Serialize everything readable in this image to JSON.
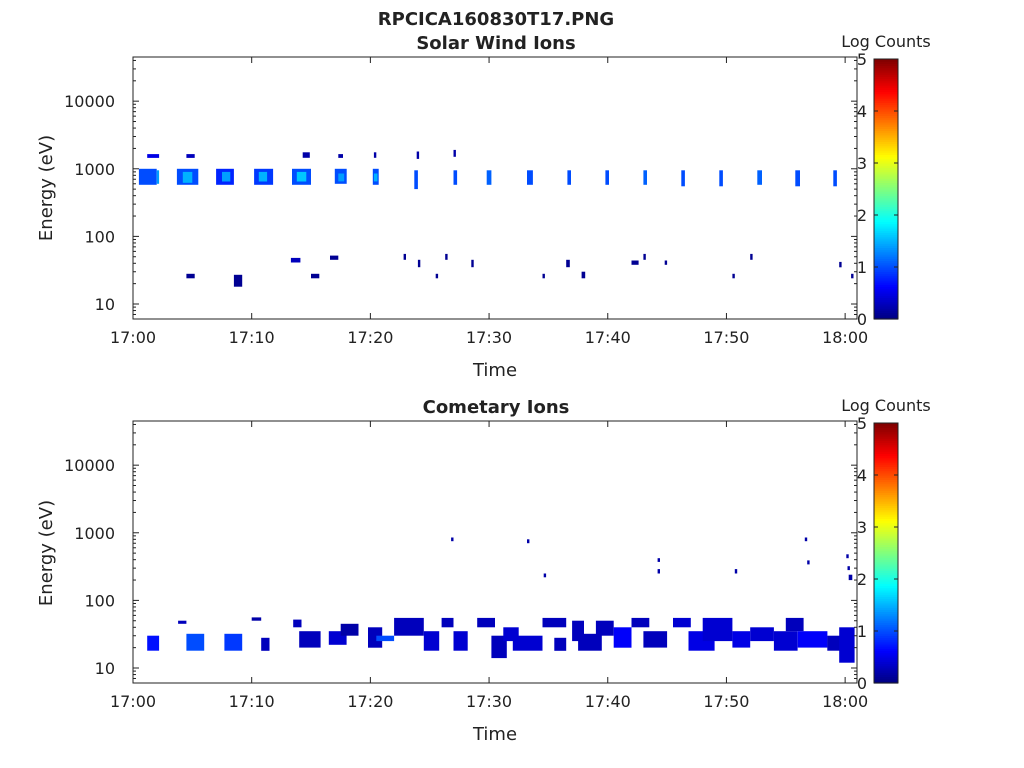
{
  "figure": {
    "title": "RPCICA160830T17.PNG"
  },
  "colormap": {
    "name": "jet",
    "stops": [
      "#00007f",
      "#0000ff",
      "#007fff",
      "#00ffff",
      "#7fff7f",
      "#ffff00",
      "#ff7f00",
      "#ff0000",
      "#7f0000"
    ]
  },
  "chart_data": [
    {
      "type": "heatmap",
      "title": "Solar Wind Ions",
      "xlabel": "Time",
      "ylabel": "Energy (eV)",
      "x_unit": "minutes after 17:00",
      "xlim": [
        0,
        61
      ],
      "ylim": [
        6,
        45000
      ],
      "y_scale": "log",
      "x_ticks": [
        {
          "value": 0,
          "label": "17:00"
        },
        {
          "value": 10,
          "label": "17:10"
        },
        {
          "value": 20,
          "label": "17:20"
        },
        {
          "value": 30,
          "label": "17:30"
        },
        {
          "value": 40,
          "label": "17:40"
        },
        {
          "value": 50,
          "label": "17:50"
        },
        {
          "value": 60,
          "label": "18:00"
        }
      ],
      "y_ticks": [
        {
          "value": 10,
          "label": "10"
        },
        {
          "value": 100,
          "label": "100"
        },
        {
          "value": 1000,
          "label": "1000"
        },
        {
          "value": 10000,
          "label": "10000"
        }
      ],
      "colorbar": {
        "label": "Log Counts",
        "min": 0,
        "max": 5,
        "ticks": [
          "0",
          "1",
          "2",
          "3",
          "4",
          "5"
        ]
      },
      "cells": [
        [
          0.5,
          2.0,
          580,
          1000,
          1.0
        ],
        [
          2.0,
          2.2,
          600,
          950,
          1.4
        ],
        [
          1.2,
          2.2,
          1450,
          1650,
          0.5
        ],
        [
          3.7,
          5.5,
          580,
          1000,
          1.0
        ],
        [
          4.2,
          5.0,
          620,
          900,
          1.5
        ],
        [
          4.5,
          5.2,
          1450,
          1650,
          0.3
        ],
        [
          7.0,
          8.5,
          580,
          1000,
          0.8
        ],
        [
          7.5,
          8.2,
          650,
          900,
          1.4
        ],
        [
          10.2,
          11.8,
          580,
          1000,
          0.9
        ],
        [
          10.6,
          11.3,
          650,
          900,
          1.5
        ],
        [
          13.4,
          15.0,
          580,
          1000,
          1.0
        ],
        [
          13.8,
          14.6,
          650,
          900,
          1.6
        ],
        [
          14.3,
          14.9,
          1450,
          1750,
          0.2
        ],
        [
          17.0,
          18.0,
          600,
          1000,
          1.0
        ],
        [
          17.3,
          17.8,
          650,
          850,
          1.4
        ],
        [
          17.3,
          17.7,
          1450,
          1650,
          0.2
        ],
        [
          20.2,
          20.7,
          580,
          1000,
          1.0
        ],
        [
          20.3,
          20.6,
          650,
          850,
          1.5
        ],
        [
          20.3,
          20.5,
          1450,
          1750,
          0.2
        ],
        [
          23.7,
          24.0,
          500,
          950,
          1.0
        ],
        [
          23.9,
          24.1,
          1400,
          1800,
          0.2
        ],
        [
          27.0,
          27.3,
          580,
          950,
          1.0
        ],
        [
          27.0,
          27.2,
          1500,
          1900,
          0.2
        ],
        [
          29.8,
          30.2,
          580,
          950,
          1.1
        ],
        [
          33.2,
          33.7,
          580,
          950,
          1.0
        ],
        [
          36.6,
          36.9,
          580,
          950,
          1.0
        ],
        [
          39.8,
          40.1,
          580,
          950,
          1.0
        ],
        [
          43.0,
          43.3,
          580,
          950,
          1.1
        ],
        [
          46.2,
          46.5,
          550,
          950,
          1.0
        ],
        [
          49.4,
          49.7,
          550,
          950,
          1.0
        ],
        [
          52.6,
          53.0,
          580,
          950,
          1.1
        ],
        [
          55.8,
          56.2,
          550,
          950,
          1.0
        ],
        [
          59.0,
          59.3,
          550,
          950,
          1.0
        ],
        [
          4.5,
          5.2,
          24,
          28,
          0.1
        ],
        [
          8.5,
          9.2,
          18,
          27,
          0.1
        ],
        [
          13.3,
          14.1,
          41,
          48,
          0.3
        ],
        [
          15.0,
          15.7,
          24,
          28,
          0.1
        ],
        [
          16.6,
          17.3,
          45,
          52,
          0.1
        ],
        [
          22.8,
          23.0,
          45,
          55,
          0.1
        ],
        [
          24.0,
          24.2,
          35,
          45,
          0.1
        ],
        [
          25.5,
          25.7,
          24,
          28,
          0.1
        ],
        [
          26.3,
          26.5,
          45,
          55,
          0.1
        ],
        [
          28.5,
          28.7,
          35,
          45,
          0.1
        ],
        [
          34.5,
          34.7,
          24,
          28,
          0.1
        ],
        [
          36.5,
          36.8,
          35,
          45,
          0.1
        ],
        [
          37.8,
          38.1,
          24,
          30,
          0.1
        ],
        [
          42.0,
          42.6,
          38,
          44,
          0.1
        ],
        [
          43.0,
          43.2,
          45,
          55,
          0.1
        ],
        [
          44.8,
          45.0,
          38,
          44,
          0.1
        ],
        [
          50.5,
          50.7,
          24,
          28,
          0.1
        ],
        [
          52.0,
          52.2,
          45,
          55,
          0.1
        ],
        [
          59.5,
          59.7,
          35,
          42,
          0.1
        ],
        [
          60.5,
          60.7,
          24,
          28,
          0.1
        ]
      ]
    },
    {
      "type": "heatmap",
      "title": "Cometary Ions",
      "xlabel": "Time",
      "ylabel": "Energy (eV)",
      "x_unit": "minutes after 17:00",
      "xlim": [
        0,
        61
      ],
      "ylim": [
        6,
        45000
      ],
      "y_scale": "log",
      "x_ticks": [
        {
          "value": 0,
          "label": "17:00"
        },
        {
          "value": 10,
          "label": "17:10"
        },
        {
          "value": 20,
          "label": "17:20"
        },
        {
          "value": 30,
          "label": "17:30"
        },
        {
          "value": 40,
          "label": "17:40"
        },
        {
          "value": 50,
          "label": "17:50"
        },
        {
          "value": 60,
          "label": "18:00"
        }
      ],
      "y_ticks": [
        {
          "value": 10,
          "label": "10"
        },
        {
          "value": 100,
          "label": "100"
        },
        {
          "value": 1000,
          "label": "1000"
        },
        {
          "value": 10000,
          "label": "10000"
        }
      ],
      "colorbar": {
        "label": "Log Counts",
        "min": 0,
        "max": 5,
        "ticks": [
          "0",
          "1",
          "2",
          "3",
          "4",
          "5"
        ]
      },
      "cells": [
        [
          1.2,
          2.2,
          18,
          30,
          0.7
        ],
        [
          4.5,
          6.0,
          18,
          32,
          1.0
        ],
        [
          7.7,
          9.2,
          18,
          32,
          0.9
        ],
        [
          10.8,
          11.5,
          18,
          28,
          0.3
        ],
        [
          3.8,
          4.5,
          45,
          50,
          0.3
        ],
        [
          10.0,
          10.8,
          50,
          56,
          0.2
        ],
        [
          13.5,
          14.2,
          40,
          52,
          0.3
        ],
        [
          14.0,
          15.8,
          20,
          35,
          0.3
        ],
        [
          16.5,
          18.0,
          22,
          35,
          0.4
        ],
        [
          17.5,
          19.0,
          30,
          45,
          0.2
        ],
        [
          19.8,
          21.0,
          20,
          40,
          0.3
        ],
        [
          20.5,
          22.0,
          25,
          30,
          1.0
        ],
        [
          22.0,
          24.5,
          30,
          55,
          0.3
        ],
        [
          24.5,
          25.8,
          18,
          35,
          0.4
        ],
        [
          26.0,
          27.0,
          40,
          55,
          0.3
        ],
        [
          27.0,
          28.2,
          18,
          35,
          0.4
        ],
        [
          29.0,
          30.5,
          40,
          55,
          0.3
        ],
        [
          30.2,
          31.5,
          14,
          30,
          0.3
        ],
        [
          31.2,
          32.5,
          25,
          40,
          0.4
        ],
        [
          32.0,
          34.5,
          18,
          30,
          0.4
        ],
        [
          34.5,
          36.5,
          40,
          55,
          0.3
        ],
        [
          35.5,
          36.5,
          18,
          28,
          0.3
        ],
        [
          37.0,
          38.0,
          25,
          50,
          0.3
        ],
        [
          37.5,
          39.5,
          18,
          32,
          0.3
        ],
        [
          39.0,
          40.5,
          30,
          50,
          0.3
        ],
        [
          40.5,
          42.0,
          20,
          40,
          0.6
        ],
        [
          42.0,
          43.5,
          40,
          55,
          0.3
        ],
        [
          43.0,
          45.0,
          20,
          35,
          0.3
        ],
        [
          45.5,
          47.0,
          40,
          55,
          0.4
        ],
        [
          46.8,
          49.0,
          18,
          35,
          0.5
        ],
        [
          48.0,
          50.5,
          25,
          55,
          0.4
        ],
        [
          50.5,
          52.0,
          20,
          35,
          0.5
        ],
        [
          52.0,
          54.0,
          25,
          40,
          0.4
        ],
        [
          54.0,
          56.0,
          18,
          35,
          0.4
        ],
        [
          55.0,
          56.5,
          35,
          55,
          0.3
        ],
        [
          56.0,
          58.5,
          20,
          35,
          0.6
        ],
        [
          58.5,
          60.0,
          18,
          30,
          0.3
        ],
        [
          59.5,
          60.8,
          12,
          40,
          0.4
        ],
        [
          26.8,
          27.0,
          750,
          850,
          0.2
        ],
        [
          33.2,
          33.4,
          700,
          800,
          0.2
        ],
        [
          34.6,
          34.8,
          220,
          250,
          0.2
        ],
        [
          44.2,
          44.4,
          370,
          420,
          0.2
        ],
        [
          44.2,
          44.4,
          250,
          290,
          0.2
        ],
        [
          50.7,
          50.9,
          250,
          290,
          0.2
        ],
        [
          56.6,
          56.8,
          750,
          850,
          0.2
        ],
        [
          56.8,
          57.0,
          340,
          390,
          0.2
        ],
        [
          60.1,
          60.3,
          420,
          480,
          0.2
        ],
        [
          60.2,
          60.4,
          280,
          320,
          0.2
        ],
        [
          60.3,
          60.6,
          200,
          240,
          0.2
        ]
      ]
    }
  ]
}
